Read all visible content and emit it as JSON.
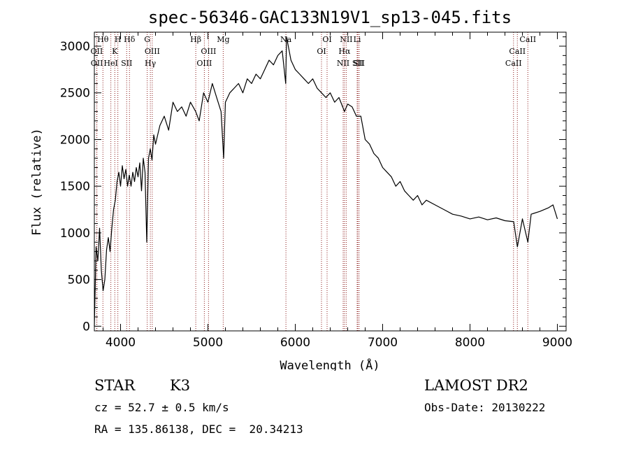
{
  "chart_data": {
    "type": "line",
    "title": "spec-56346-GAC133N19V1_sp13-045.fits",
    "xlabel": "Wavelength (Å)",
    "ylabel": "Flux (relative)",
    "xlim": [
      3700,
      9100
    ],
    "ylim": [
      -50,
      3150
    ],
    "xticks": [
      4000,
      5000,
      6000,
      7000,
      8000,
      9000
    ],
    "yticks": [
      0,
      500,
      1000,
      1500,
      2000,
      2500,
      3000
    ],
    "grid": false,
    "line_color": "#000000",
    "marker_color": "#8b1a1a",
    "series": [
      {
        "x": [
          3700,
          3720,
          3740,
          3760,
          3780,
          3800,
          3820,
          3840,
          3860,
          3880,
          3900,
          3920,
          3940,
          3960,
          3980,
          4000,
          4020,
          4040,
          4060,
          4080,
          4100,
          4120,
          4140,
          4160,
          4180,
          4200,
          4220,
          4240,
          4260,
          4280,
          4300,
          4320,
          4340,
          4360,
          4380,
          4400,
          4450,
          4500,
          4550,
          4600,
          4650,
          4700,
          4750,
          4800,
          4860,
          4900,
          4950,
          5000,
          5050,
          5100,
          5150,
          5180,
          5200,
          5250,
          5300,
          5350,
          5400,
          5450,
          5500,
          5550,
          5600,
          5650,
          5700,
          5750,
          5800,
          5850,
          5890,
          5900,
          5950,
          6000,
          6050,
          6100,
          6150,
          6200,
          6250,
          6300,
          6350,
          6400,
          6450,
          6500,
          6563,
          6600,
          6650,
          6700,
          6750,
          6800,
          6850,
          6900,
          6950,
          7000,
          7050,
          7100,
          7150,
          7200,
          7250,
          7300,
          7350,
          7400,
          7450,
          7500,
          7600,
          7700,
          7800,
          7900,
          8000,
          8100,
          8200,
          8300,
          8400,
          8500,
          8542,
          8600,
          8662,
          8700,
          8800,
          8900,
          8950,
          9000
        ],
        "y": [
          0,
          850,
          700,
          1050,
          600,
          380,
          500,
          820,
          950,
          800,
          1050,
          1250,
          1350,
          1550,
          1650,
          1500,
          1720,
          1580,
          1680,
          1500,
          1620,
          1500,
          1650,
          1550,
          1700,
          1600,
          1750,
          1450,
          1800,
          1650,
          900,
          1800,
          1900,
          1780,
          2050,
          1950,
          2150,
          2250,
          2100,
          2400,
          2300,
          2350,
          2250,
          2400,
          2300,
          2200,
          2500,
          2400,
          2600,
          2450,
          2300,
          1800,
          2400,
          2500,
          2550,
          2600,
          2500,
          2650,
          2600,
          2700,
          2650,
          2750,
          2850,
          2800,
          2900,
          2950,
          2600,
          3100,
          2850,
          2750,
          2700,
          2650,
          2600,
          2650,
          2550,
          2500,
          2450,
          2500,
          2400,
          2450,
          2300,
          2380,
          2350,
          2250,
          2250,
          2000,
          1950,
          1850,
          1800,
          1700,
          1650,
          1600,
          1500,
          1550,
          1450,
          1400,
          1350,
          1400,
          1300,
          1350,
          1300,
          1250,
          1200,
          1180,
          1150,
          1170,
          1140,
          1160,
          1130,
          1120,
          850,
          1150,
          900,
          1200,
          1230,
          1270,
          1300,
          1150
        ]
      }
    ],
    "line_markers": [
      {
        "label": "Hθ",
        "wavelength": 3798
      },
      {
        "label": "OII",
        "wavelength": 3727
      },
      {
        "label": "OII",
        "wavelength": 3729
      },
      {
        "label": "H",
        "wavelength": 3969
      },
      {
        "label": "K",
        "wavelength": 3934
      },
      {
        "label": "HeI",
        "wavelength": 3889
      },
      {
        "label": "Hδ",
        "wavelength": 4102
      },
      {
        "label": "SII",
        "wavelength": 4070
      },
      {
        "label": "G",
        "wavelength": 4305
      },
      {
        "label": "OIII",
        "wavelength": 4363
      },
      {
        "label": "Hγ",
        "wavelength": 4341
      },
      {
        "label": "Hβ",
        "wavelength": 4861
      },
      {
        "label": "OIII",
        "wavelength": 5007
      },
      {
        "label": "OIII",
        "wavelength": 4959
      },
      {
        "label": "Mg",
        "wavelength": 5175
      },
      {
        "label": "Na",
        "wavelength": 5893
      },
      {
        "label": "OI",
        "wavelength": 6364
      },
      {
        "label": "OI",
        "wavelength": 6300
      },
      {
        "label": "NII",
        "wavelength": 6583
      },
      {
        "label": "Hα",
        "wavelength": 6563
      },
      {
        "label": "NII",
        "wavelength": 6548
      },
      {
        "label": "SII",
        "wavelength": 6731
      },
      {
        "label": "SII",
        "wavelength": 6716
      },
      {
        "label": "Li",
        "wavelength": 6708
      },
      {
        "label": "CaII",
        "wavelength": 8662
      },
      {
        "label": "CaII",
        "wavelength": 8542
      },
      {
        "label": "CaII",
        "wavelength": 8498
      }
    ]
  },
  "info": {
    "class": "STAR",
    "subclass": "K3",
    "survey": "LAMOST DR2",
    "cz": "cz = 52.7 ± 0.5 km/s",
    "obs_date": "Obs-Date: 20130222",
    "coords": "RA = 135.86138, DEC =  20.34213"
  }
}
